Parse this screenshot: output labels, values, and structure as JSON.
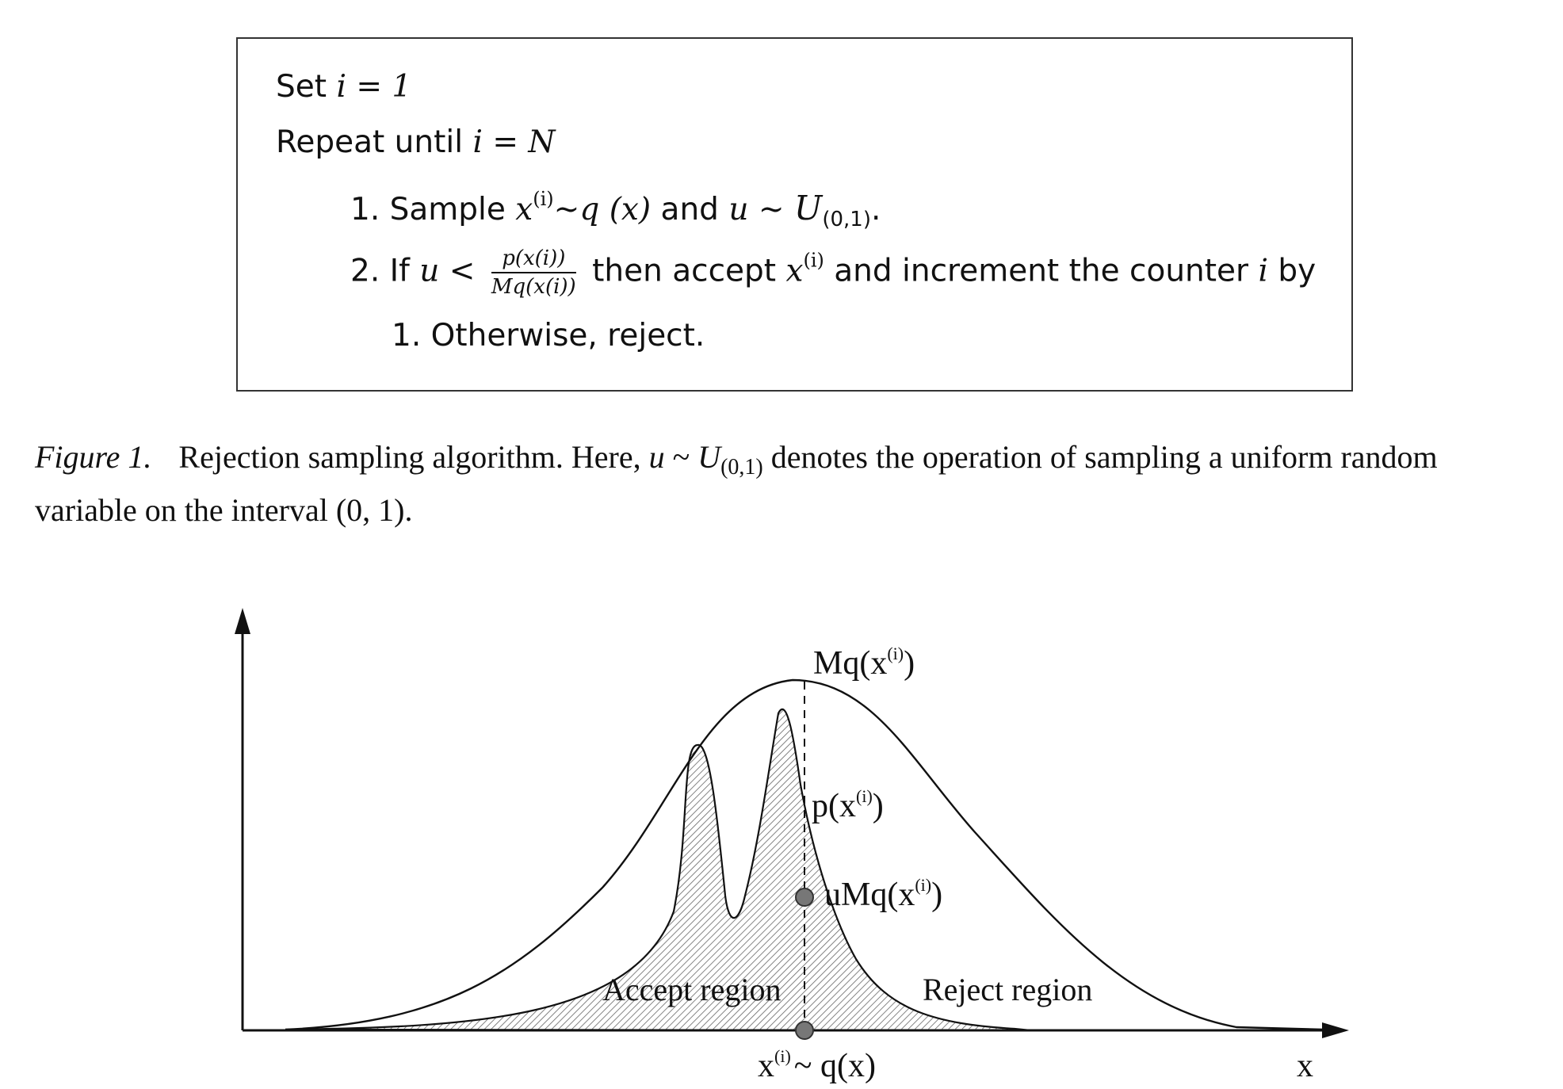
{
  "algorithm": {
    "line1": {
      "label": "Set",
      "eq": "i = 1"
    },
    "line2": {
      "label": "Repeat until",
      "eq": "i = N"
    },
    "step1": {
      "num": "1.",
      "label": "Sample",
      "x": "x",
      "sup": "(i)",
      "dist": "~q (x)",
      "and": "and",
      "u": "u ~ ",
      "U": "U",
      "sub": "(0,1)",
      "end": "."
    },
    "step2": {
      "num": "2.",
      "if": "If",
      "cond": "u <",
      "frac_num": "p(x(i))",
      "frac_den": "Mq(x(i))",
      "then": "then accept",
      "x": "x",
      "sup": "(i)",
      "rest": "and increment the counter",
      "i": "i",
      "by": "by",
      "cont": "1. Otherwise, reject."
    }
  },
  "caption": {
    "label": "Figure 1.",
    "text1": "Rejection sampling algorithm. Here,",
    "u": "u",
    "tilde": " ~ ",
    "U": "U",
    "sub": "(0,1)",
    "text2": " denotes the operation of sampling a uniform random",
    "line2": "variable on the interval (0, 1)."
  },
  "figure": {
    "labels": {
      "mq": "Mq(x",
      "mq_sup": "(i)",
      "mq_close": ")",
      "p": "p(x",
      "p_sup": "(i)",
      "p_close": ")",
      "umq": "uMq(x",
      "umq_sup": "(i)",
      "umq_close": ")",
      "accept": "Accept region",
      "reject": "Reject region",
      "xi": "x",
      "xi_sup": "(i)",
      "xi_rest": "~ q(x)",
      "x_axis": "x"
    }
  }
}
